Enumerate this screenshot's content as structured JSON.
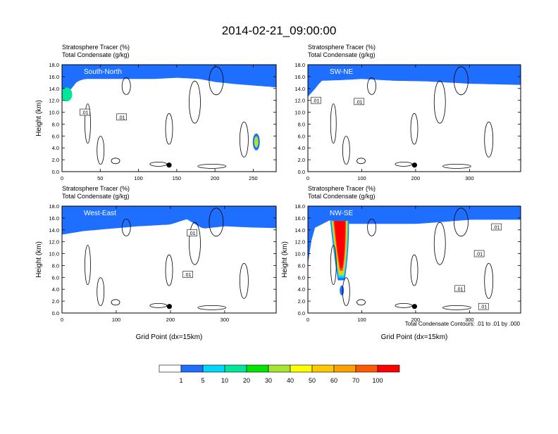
{
  "figure_title": "2014-02-21_09:00:00",
  "contour_note": "Total Condensate Contours: .01 to .01 by .000",
  "colorbar": {
    "colors": [
      "#ffffff",
      "#1e6eff",
      "#00d7ff",
      "#00e69b",
      "#00e600",
      "#a5e632",
      "#ffff00",
      "#ffc800",
      "#ffa000",
      "#ff5a00",
      "#ff0000"
    ],
    "labels": [
      "1",
      "5",
      "10",
      "20",
      "30",
      "40",
      "50",
      "60",
      "70",
      "100"
    ]
  },
  "chart_data": [
    {
      "type": "heatmap",
      "subtitle_1": "Stratosphere Tracer   (%)",
      "subtitle_2": "Total Condensate   (g/kg)",
      "label": "South-North",
      "ylabel": "Height (km)",
      "xlabel": "",
      "xlim": [
        0,
        280
      ],
      "ylim": [
        0,
        18
      ],
      "xticks": [
        "0",
        "50",
        "100",
        "150",
        "200",
        "250"
      ],
      "xtick_values": [
        0,
        50,
        100,
        150,
        200,
        250
      ],
      "yticks": [
        "0.0",
        "2.0",
        "4.0",
        "6.0",
        "8.0",
        "10.0",
        "12.0",
        "14.0",
        "16.0",
        "18.0"
      ],
      "contour_labels": [
        {
          "text": ".01",
          "x": 30,
          "y": 10
        },
        {
          "text": ".01",
          "x": 78,
          "y": 9.2
        }
      ],
      "marker": {
        "x": 140,
        "y": 1.1
      },
      "tracer_base": [
        [
          0,
          12.5
        ],
        [
          10,
          13.6
        ],
        [
          20,
          15.2
        ],
        [
          30,
          15.6
        ],
        [
          60,
          15.6
        ],
        [
          90,
          15.6
        ],
        [
          120,
          15.6
        ],
        [
          150,
          15.8
        ],
        [
          180,
          15.6
        ],
        [
          200,
          15.1
        ],
        [
          230,
          14.7
        ],
        [
          260,
          14.4
        ],
        [
          280,
          14.2
        ]
      ]
    },
    {
      "type": "heatmap",
      "subtitle_1": "Stratosphere Tracer   (%)",
      "subtitle_2": "Total Condensate   (g/kg)",
      "label": "SW-NE",
      "ylabel": "",
      "xlabel": "",
      "xlim": [
        0,
        395
      ],
      "ylim": [
        0,
        18
      ],
      "xticks": [
        "0",
        "100",
        "200",
        "300"
      ],
      "xtick_values": [
        0,
        100,
        200,
        300
      ],
      "yticks": [
        "0.0",
        "2.0",
        "4.0",
        "6.0",
        "8.0",
        "10.0",
        "12.0",
        "14.0",
        "16.0",
        "18.0"
      ],
      "contour_labels": [
        {
          "text": ".01",
          "x": 15,
          "y": 12
        },
        {
          "text": ".01",
          "x": 95,
          "y": 11.8
        }
      ],
      "marker": {
        "x": 198,
        "y": 1.1
      },
      "tracer_base": [
        [
          0,
          12.6
        ],
        [
          12,
          13.8
        ],
        [
          25,
          15.3
        ],
        [
          60,
          15.4
        ],
        [
          100,
          15.6
        ],
        [
          160,
          15.3
        ],
        [
          220,
          15.2
        ],
        [
          300,
          14.8
        ],
        [
          395,
          14.6
        ]
      ]
    },
    {
      "type": "heatmap",
      "subtitle_1": "Stratosphere Tracer   (%)",
      "subtitle_2": "Total Condensate   (g/kg)",
      "label": "West-East",
      "ylabel": "Height (km)",
      "xlabel": "Grid Point (dx=15km)",
      "xlim": [
        0,
        395
      ],
      "ylim": [
        0,
        18
      ],
      "xticks": [
        "0",
        "100",
        "200",
        "300"
      ],
      "xtick_values": [
        0,
        100,
        200,
        300
      ],
      "yticks": [
        "0.0",
        "2.0",
        "4.0",
        "6.0",
        "8.0",
        "10.0",
        "12.0",
        "14.0",
        "16.0",
        "18.0"
      ],
      "contour_labels": [
        {
          "text": ".01",
          "x": 240,
          "y": 13.5
        },
        {
          "text": ".01",
          "x": 232,
          "y": 6.5
        }
      ],
      "marker": {
        "x": 198,
        "y": 1.1
      },
      "tracer_base": [
        [
          0,
          13.2
        ],
        [
          40,
          13.8
        ],
        [
          90,
          14.2
        ],
        [
          140,
          14.6
        ],
        [
          200,
          14.9
        ],
        [
          230,
          15.8
        ],
        [
          260,
          14.2
        ],
        [
          300,
          14.6
        ],
        [
          350,
          14.4
        ],
        [
          395,
          14.3
        ]
      ]
    },
    {
      "type": "heatmap",
      "subtitle_1": "Stratosphere Tracer   (%)",
      "subtitle_2": "Total Condensate   (g/kg)",
      "label": "NW-SE",
      "ylabel": "Height (km)",
      "xlabel": "Grid Point (dx=15km)",
      "xlim": [
        0,
        395
      ],
      "ylim": [
        0,
        18
      ],
      "xticks": [
        "0",
        "100",
        "200",
        "300"
      ],
      "xtick_values": [
        0,
        100,
        200,
        300
      ],
      "yticks": [
        "0.0",
        "2.0",
        "4.0",
        "6.0",
        "8.0",
        "10.0",
        "12.0",
        "14.0",
        "16.0",
        "18.0"
      ],
      "contour_labels": [
        {
          "text": ".01",
          "x": 318,
          "y": 10
        },
        {
          "text": ".01",
          "x": 282,
          "y": 4.1
        },
        {
          "text": ".01",
          "x": 326,
          "y": 1.1
        },
        {
          "text": ".01",
          "x": 350,
          "y": 14.5
        }
      ],
      "marker": {
        "x": 198,
        "y": 1.1
      },
      "tracer_base": [
        [
          0,
          8.2
        ],
        [
          10,
          14.2
        ],
        [
          40,
          15.6
        ],
        [
          80,
          15.0
        ],
        [
          140,
          15.0
        ],
        [
          200,
          15.0
        ],
        [
          260,
          15.4
        ],
        [
          300,
          15.7
        ],
        [
          395,
          15.7
        ]
      ]
    }
  ]
}
